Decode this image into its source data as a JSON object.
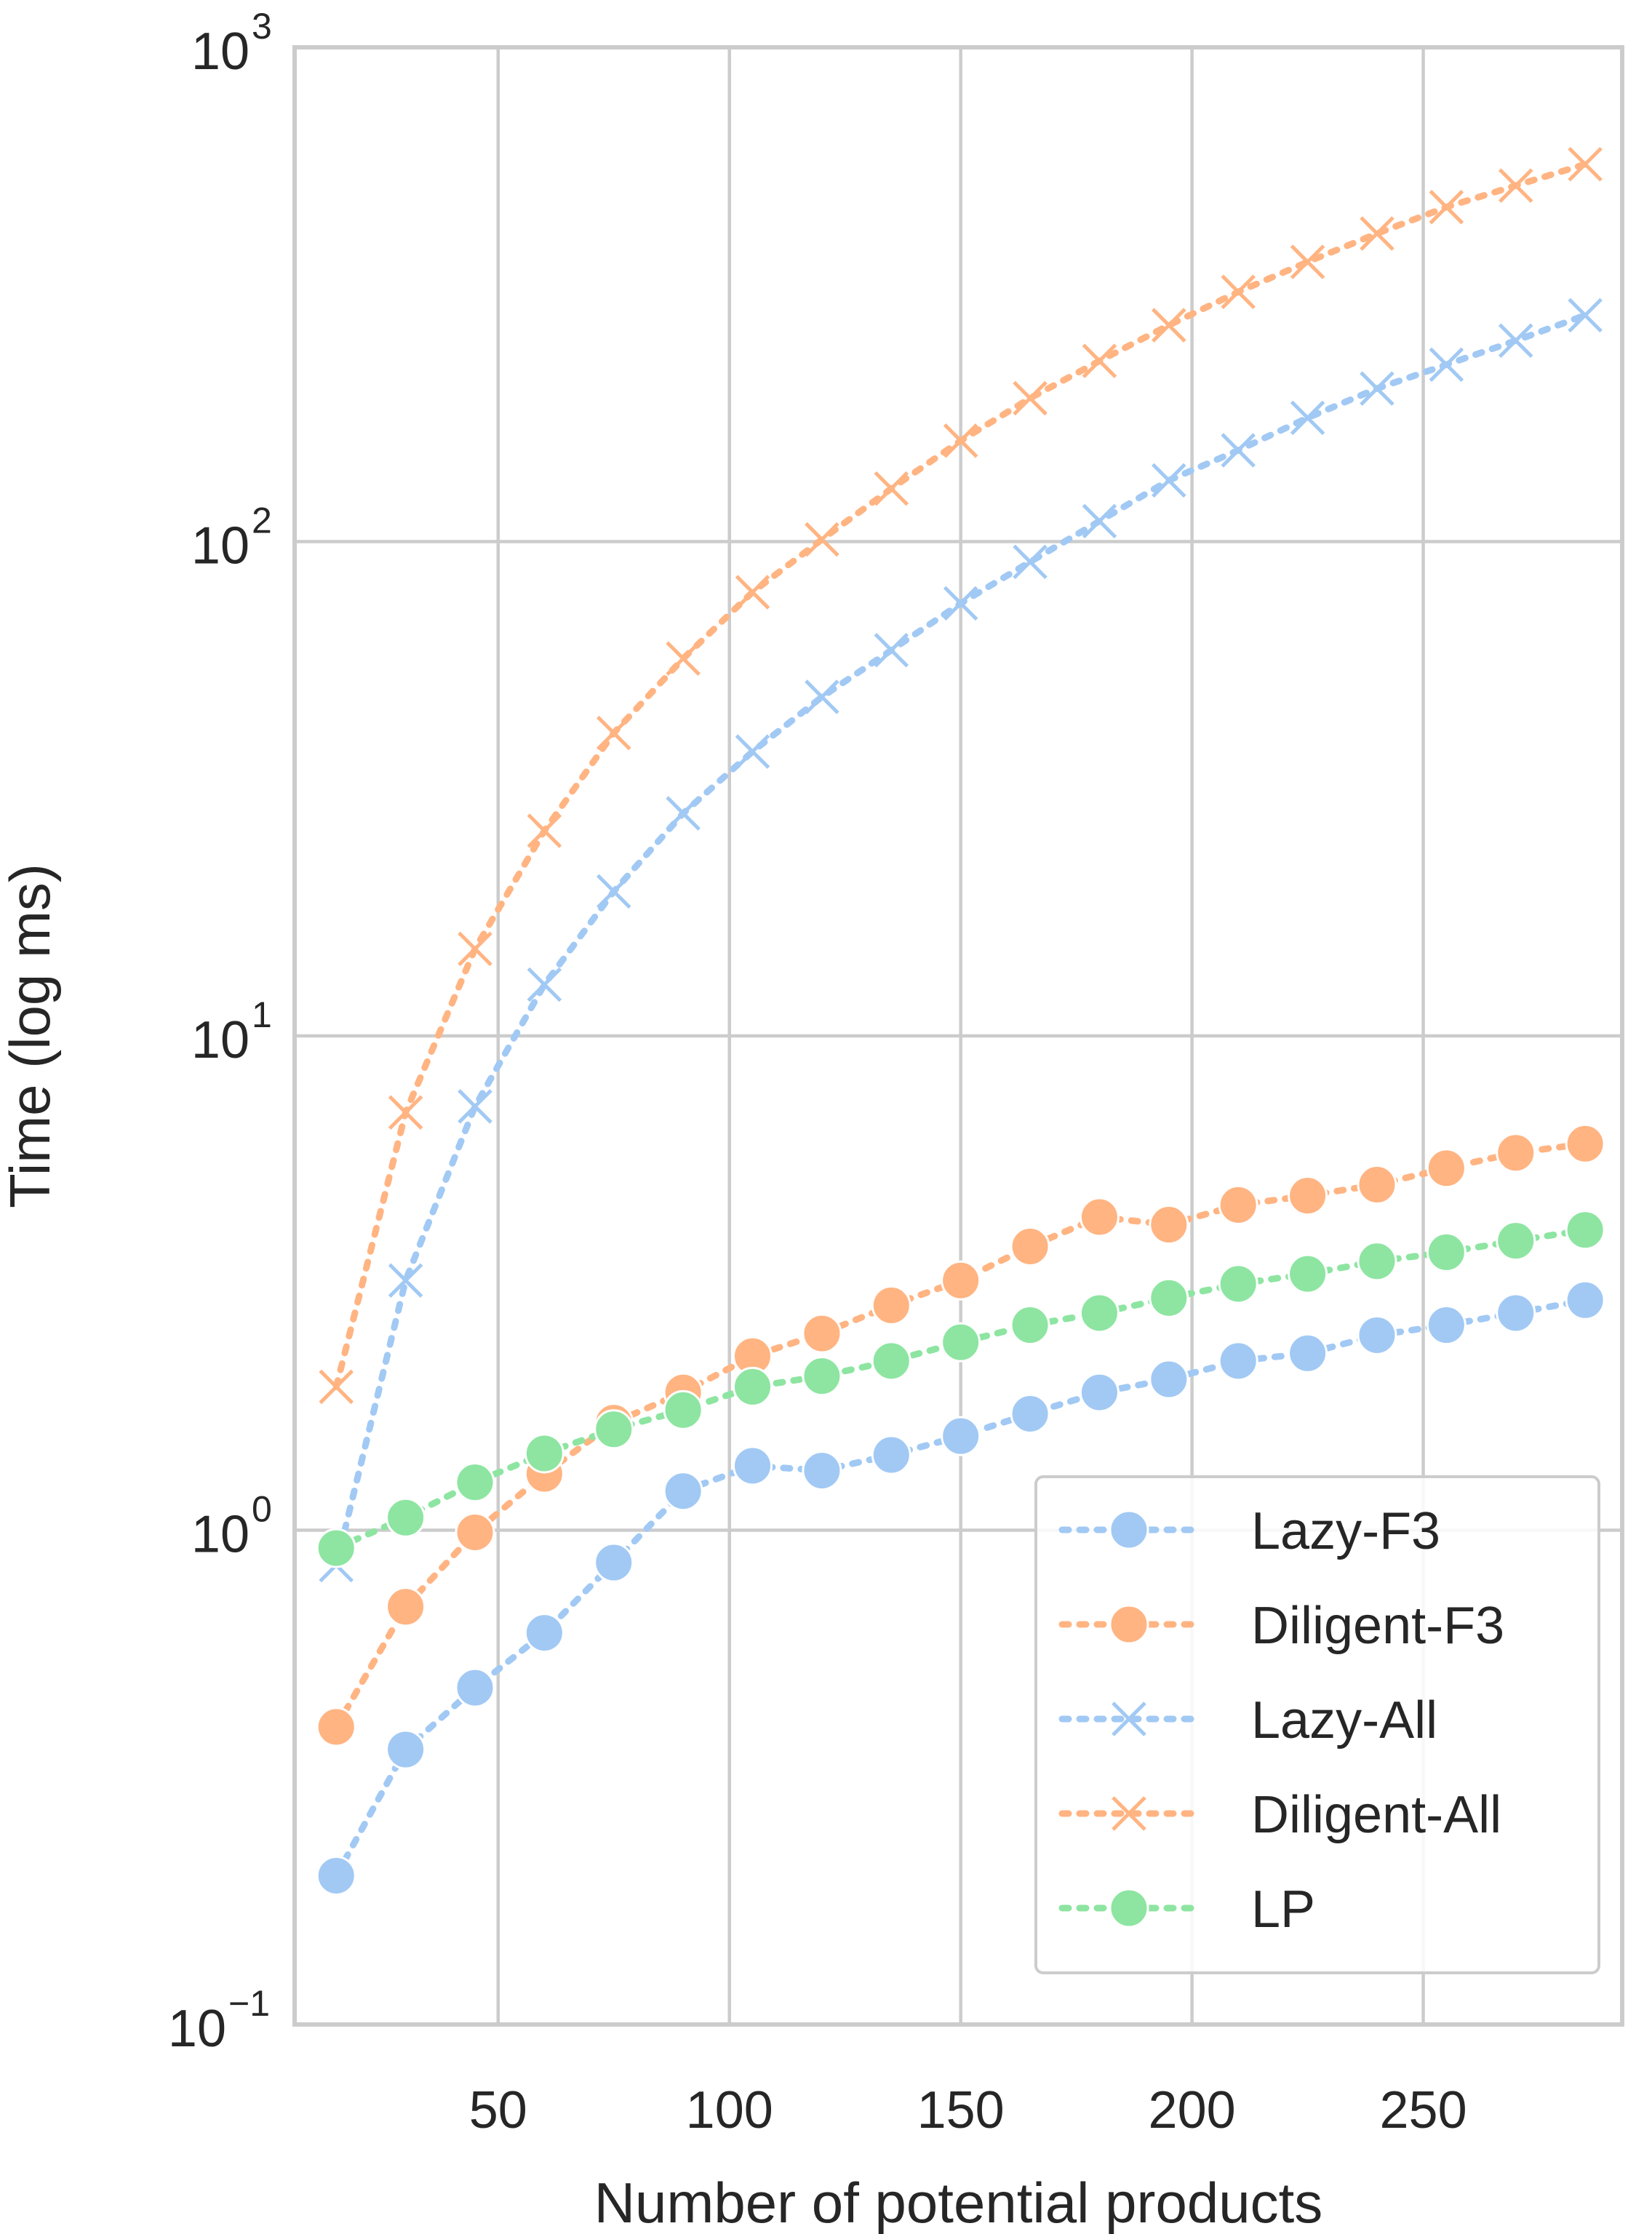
{
  "chart_data": {
    "type": "line",
    "title": "",
    "xlabel": "Number of potential products",
    "ylabel": "Time (log ms)",
    "xlim": [
      6,
      293
    ],
    "ylim": [
      0.1,
      1000
    ],
    "yscale": "log",
    "xticks": [
      50,
      100,
      150,
      200,
      250
    ],
    "xtick_labels": [
      "50",
      "100",
      "150",
      "200",
      "250"
    ],
    "yticks": [
      {
        "value": 0.1,
        "base": "10",
        "exp": "−1"
      },
      {
        "value": 1,
        "base": "10",
        "exp": "0"
      },
      {
        "value": 10,
        "base": "10",
        "exp": "1"
      },
      {
        "value": 100,
        "base": "10",
        "exp": "2"
      },
      {
        "value": 1000,
        "base": "10",
        "exp": "3"
      }
    ],
    "grid": true,
    "legend_position": "lower right",
    "x": [
      15,
      30,
      45,
      60,
      75,
      90,
      105,
      120,
      135,
      150,
      165,
      180,
      195,
      210,
      225,
      240,
      255,
      270,
      285
    ],
    "series": [
      {
        "name": "Lazy-F3",
        "marker": "circle",
        "color": "#a1c9f4",
        "values": [
          0.2,
          0.36,
          0.48,
          0.62,
          0.86,
          1.2,
          1.35,
          1.32,
          1.42,
          1.55,
          1.72,
          1.9,
          2.02,
          2.2,
          2.28,
          2.48,
          2.6,
          2.75,
          2.92
        ]
      },
      {
        "name": "Diligent-F3",
        "marker": "circle",
        "color": "#ffb482",
        "values": [
          0.4,
          0.7,
          0.99,
          1.3,
          1.65,
          1.9,
          2.25,
          2.5,
          2.85,
          3.2,
          3.75,
          4.3,
          4.15,
          4.55,
          4.75,
          5.0,
          5.4,
          5.8,
          6.05
        ]
      },
      {
        "name": "Lazy-All",
        "marker": "x",
        "color": "#a1c9f4",
        "values": [
          0.85,
          3.2,
          7.2,
          12.7,
          19.6,
          28.2,
          37.6,
          48.5,
          60.3,
          75.0,
          91.0,
          110.0,
          133.0,
          153.0,
          178.0,
          204.0,
          228.0,
          255.0,
          287.0
        ]
      },
      {
        "name": "Diligent-All",
        "marker": "x",
        "color": "#ffb482",
        "values": [
          1.95,
          7.0,
          15.0,
          26.0,
          41.0,
          58.0,
          79.0,
          101.0,
          128.0,
          160.0,
          195.0,
          232.0,
          274.0,
          320.0,
          368.0,
          420.0,
          475.0,
          525.0,
          580.0
        ]
      },
      {
        "name": "LP",
        "marker": "circle",
        "color": "#8de5a1",
        "values": [
          0.92,
          1.06,
          1.25,
          1.43,
          1.6,
          1.75,
          1.95,
          2.05,
          2.2,
          2.4,
          2.6,
          2.75,
          2.95,
          3.15,
          3.3,
          3.5,
          3.65,
          3.85,
          4.05
        ]
      }
    ]
  }
}
